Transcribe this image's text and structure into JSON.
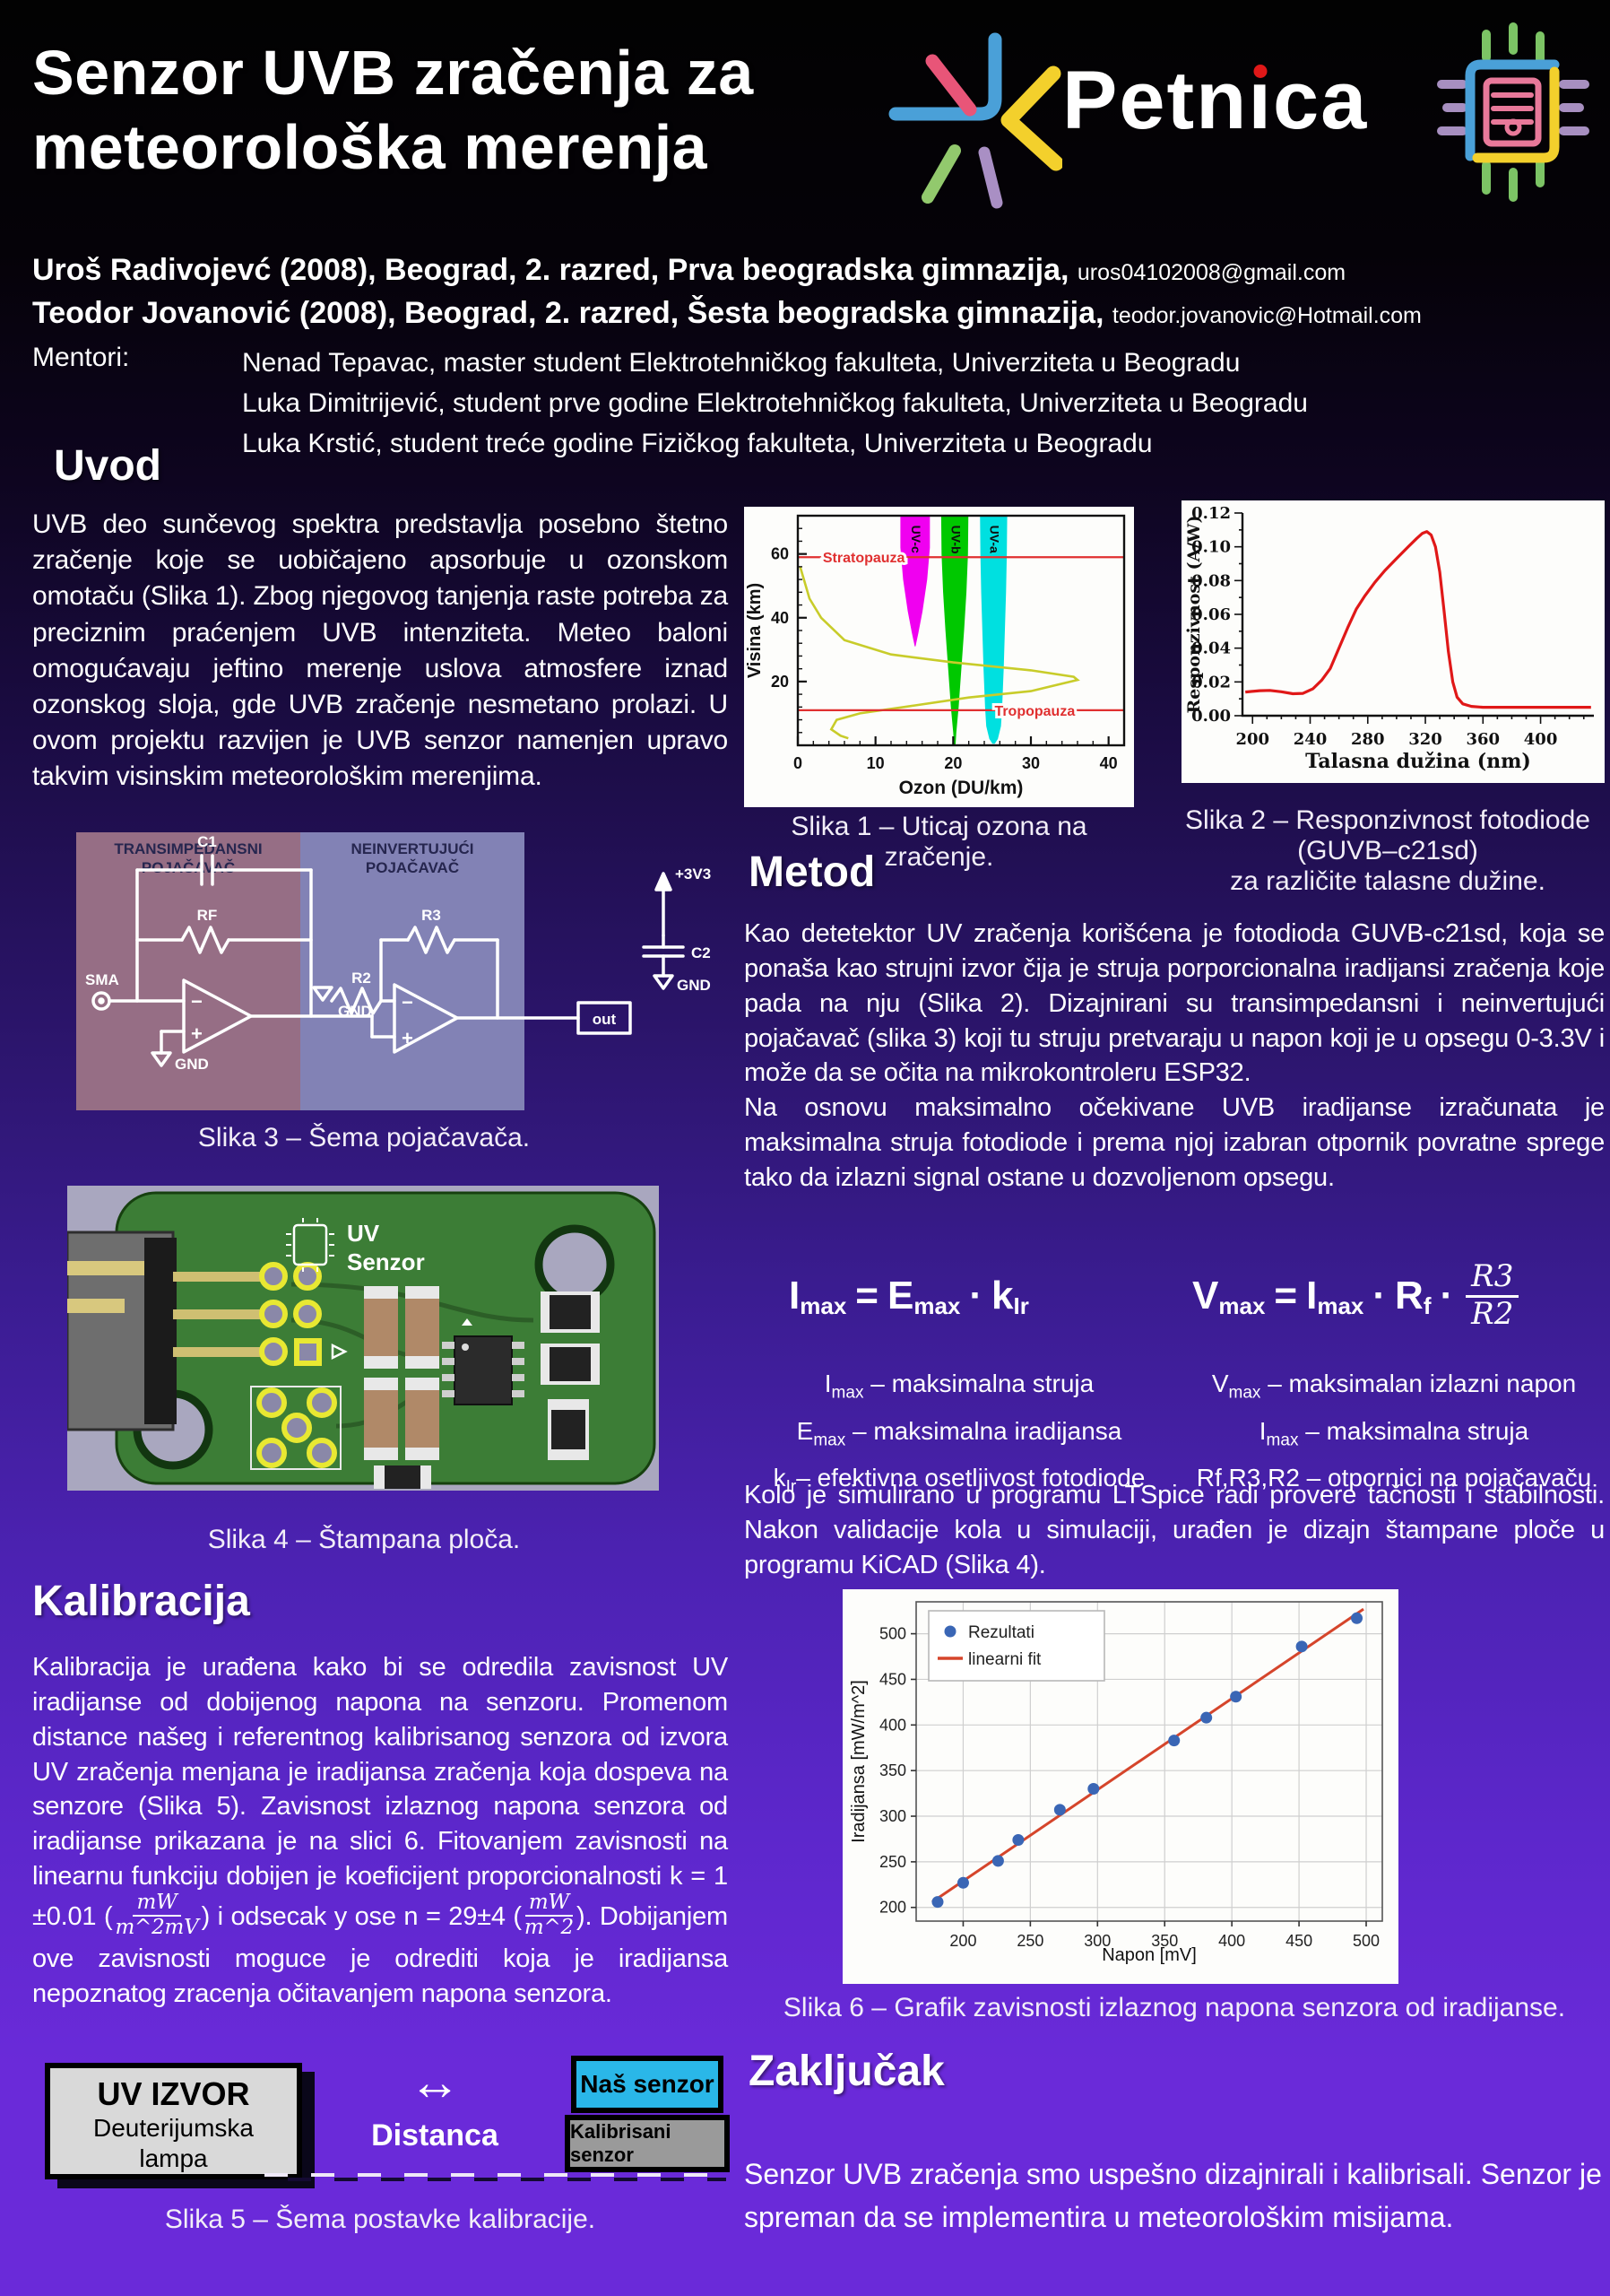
{
  "header": {
    "title_line1": "Senzor UVB zračenja za",
    "title_line2": "meteorološka merenja",
    "authors": [
      {
        "main": "Uroš Radivojevć (2008), Beograd, 2. razred, Prva beogradska gimnazija,",
        "email": "uros04102008@gmail.com"
      },
      {
        "main": "Teodor Jovanović (2008), Beograd, 2. razred, Šesta beogradska gimnazija,",
        "email": "teodor.jovanovic@Hotmail.com"
      }
    ],
    "mentors_label": "Mentori:",
    "mentors": [
      "Nenad Tepavac, master student Elektrotehničkog fakulteta, Univerziteta u Beogradu",
      "Luka Dimitrijević, student prve godine Elektrotehničkog fakulteta, Univerziteta u Beogradu",
      "Luka Krstić, student treće godine Fizičkog fakulteta, Univerziteta u Beogradu"
    ],
    "logo_p1": "Petn",
    "logo_p2": "ı",
    "logo_p3": "ca"
  },
  "uvod": {
    "heading": "Uvod",
    "body": "UVB deo sunčevog spektra predstavlja posebno štetno zračenje koje se uobičajeno apsorbuje u ozonskom omotaču (Slika 1). Zbog njegovog tanjenja raste potreba za preciznim praćenjem UVB intenziteta. Meteo baloni omogućavaju jeftino merenje uslova atmosfere iznad ozonskog sloja, gde UVB zračenje nesmetano prolazi. U ovom projektu razvijen je UVB senzor namenjen upravo takvim visinskim meteorološkim merenjima."
  },
  "metod": {
    "heading": "Metod",
    "p1": "Kao detetektor UV zračenja korišćena je fotodioda GUVB-c21sd, koja se ponaša kao strujni izvor čija je struja porporcionalna iradijansi zračenja koje pada na nju (Slika 2). Dizajnirani su transimpedansni i neinvertujući pojačavač (slika 3) koji tu struju pretvaraju u napon koji je u opsegu 0-3.3V i može da se očita na mikrokontroleru ESP32.",
    "p2": "Na osnovu maksimalno očekivane UVB iradijanse izračunata je maksimalna struja fotodiode i prema njoj izabran otpornik povratne sprege tako da izlazni signal ostane u dozvoljenom opsegu.",
    "p3": "Kolo je simulirano u programu LTSpice radi provere tačnosti i stabilnosti. Nakon validacije kola u simulaciji, urađen je dizajn štampane ploče u programu KiCAD (Slika 4)."
  },
  "kalibracija": {
    "heading": "Kalibracija",
    "t1": "Kalibracija je urađena kako bi se odredila zavisnost UV iradijanse od dobijenog napona na senzoru. Promenom distance našeg i referentnog kalibrisanog senzora od izvora UV zračenja menjana je iradijansa zračenja koja dospeva na senzore (Slika 5). Zavisnost izlaznog napona senzora od iradijanse prikazana je na slici 6. Fitovanjem zavisnosti na linearnu funkciju dobijen je koeficijent proporcionalnosti k = 1 ±0.01 (",
    "frac1_num": "mW",
    "frac1_den": "m^2mV",
    "t2": ") i odsecak y ose n = 29±4 (",
    "frac2_num": "mW",
    "frac2_den": "m^2",
    "t3": "). Dobijanjem ove zavisnosti moguce je odrediti koja je iradijansa nepoznatog zracenja očitavanjem napona senzora."
  },
  "zakljucak": {
    "heading": "Zaključak",
    "body": "Senzor UVB zračenja smo uspešno dizajnirali i kalibrisali. Senzor je spreman da se implementira u meteorološkim misijama."
  },
  "formulas": {
    "imax": {
      "b1": "I",
      "s1": "max",
      "eq": "=",
      "b2": "E",
      "s2": "max",
      "dot": "·",
      "b3": "k",
      "s3": "Ir"
    },
    "vmax": {
      "b1": "V",
      "s1": "max",
      "eq": "=",
      "b2": "I",
      "s2": "max",
      "d1": "·",
      "b3": "R",
      "s3": "f",
      "d2": "·",
      "num": "R3",
      "den": "R2"
    },
    "defs_left": [
      {
        "base": "I",
        "sub": "max",
        "rest": " – maksimalna struja"
      },
      {
        "base": "E",
        "sub": "max",
        "rest": " – maksimalna iradijansa"
      },
      {
        "base": "k",
        "sub": "Ir",
        "rest": "– efektivna osetljivost fotodiode"
      }
    ],
    "defs_right": [
      {
        "base": "V",
        "sub": "max",
        "rest": " – maksimalan izlazni napon"
      },
      {
        "base": "I",
        "sub": "max",
        "rest": " – maksimalna struja"
      },
      {
        "base": "Rf,R3,R2",
        "sub": "",
        "rest": " – otpornici na pojačavaču"
      }
    ]
  },
  "figures": {
    "fig1": {
      "caption": "Slika 1 – Uticaj ozona na zračenje."
    },
    "fig2": {
      "cap1": "Slika 2 – Responzivnost fotodiode",
      "cap2": "(GUVB–c21sd)",
      "cap3": "za različite talasne dužine."
    },
    "fig3": {
      "caption": "Slika 3 – Šema pojačavača.",
      "t1a": "TRANSIMPEDANSNI",
      "t1b": "POJAČAVAČ",
      "t2a": "NEINVERTUJUĆI",
      "t2b": "POJAČAVAČ",
      "c1": "C1",
      "rf": "RF",
      "sma": "SMA",
      "gnd": "GND",
      "r2": "R2",
      "r3": "R3",
      "out": "out",
      "v33": "+3V3",
      "c2": "C2",
      "minus": "−",
      "plus": "+"
    },
    "fig4": {
      "caption": "Slika 4 – Štampana ploča.",
      "silk1": "UV",
      "silk2": "Senzor"
    },
    "fig5": {
      "caption": "Slika 5 – Šema postavke kalibracije.",
      "box1_l1": "UV IZVOR",
      "box1_l2": "Deuterijumska",
      "box1_l3": "lampa",
      "arrow": "↔",
      "distance": "Distanca",
      "nas": "Naš senzor",
      "kalib": "Kalibrisani senzor"
    },
    "fig6": {
      "caption": "Slika 6 – Grafik zavisnosti izlaznog napona senzora od iradijanse."
    }
  },
  "chart_data": [
    {
      "figure": "Slika 1",
      "type": "area",
      "xlabel": "Ozon (DU/km)",
      "ylabel": "Visina (km)",
      "xlim": [
        0,
        42
      ],
      "ylim": [
        0,
        72
      ],
      "xticks": [
        0,
        10,
        20,
        30,
        40
      ],
      "yticks": [
        20,
        40,
        60
      ],
      "grid": false,
      "legend_position": "none",
      "hlines": [
        {
          "label": "Stratopauza",
          "y": 59,
          "color": "#e03030",
          "label_x": 8.5
        },
        {
          "label": "Tropopauza",
          "y": 11,
          "color": "#e03030",
          "label_x": 30.5
        }
      ],
      "bands": [
        {
          "label": "UV-c",
          "color": "#f000f0",
          "center": 15.1,
          "profile": [
            [
              72,
              1.9
            ],
            [
              62,
              1.9
            ],
            [
              52,
              1.55
            ],
            [
              42,
              0.95
            ],
            [
              35,
              0.4
            ],
            [
              31,
              0.05
            ]
          ]
        },
        {
          "label": "UV-b",
          "color": "#00c800",
          "center": 20.2,
          "profile": [
            [
              72,
              1.75
            ],
            [
              60,
              1.7
            ],
            [
              48,
              1.5
            ],
            [
              36,
              1.2
            ],
            [
              24,
              0.85
            ],
            [
              12,
              0.5
            ],
            [
              4,
              0.2
            ],
            [
              0,
              0.1
            ]
          ]
        },
        {
          "label": "UV-a",
          "color": "#00e0e0",
          "center": 25.2,
          "profile": [
            [
              72,
              1.75
            ],
            [
              60,
              1.7
            ],
            [
              48,
              1.6
            ],
            [
              36,
              1.45
            ],
            [
              24,
              1.3
            ],
            [
              12,
              1.1
            ],
            [
              6,
              0.95
            ],
            [
              2,
              0.55
            ],
            [
              0.5,
              0.15
            ]
          ]
        }
      ],
      "ozone_profile": {
        "color": "#c8cc2a",
        "points": [
          [
            0.3,
            56
          ],
          [
            1.5,
            46
          ],
          [
            3,
            40
          ],
          [
            6,
            33
          ],
          [
            12,
            28.5
          ],
          [
            20,
            26
          ],
          [
            30,
            23.5
          ],
          [
            35.5,
            21.5
          ],
          [
            36,
            20.5
          ],
          [
            30,
            17
          ],
          [
            22,
            15
          ],
          [
            15,
            12.5
          ],
          [
            8,
            10
          ],
          [
            5,
            8
          ],
          [
            4.3,
            5
          ],
          [
            5.5,
            3
          ],
          [
            6.5,
            2.2
          ]
        ]
      }
    },
    {
      "figure": "Slika 2",
      "type": "line",
      "xlabel": "Talasna dužina (nm)",
      "ylabel": "Responzivnost (A/W)",
      "xlim": [
        193,
        437
      ],
      "ylim": [
        0,
        0.12
      ],
      "xticks": [
        200,
        240,
        280,
        320,
        360,
        400
      ],
      "yticks": [
        0,
        0.02,
        0.04,
        0.06,
        0.08,
        0.1,
        0.12
      ],
      "ytick_labels": [
        "0.00",
        "0.02",
        "0.04",
        "0.06",
        "0.08",
        "0.10",
        "0.12"
      ],
      "grid": false,
      "line_color": "#e01818",
      "points": [
        [
          195,
          0.014
        ],
        [
          205,
          0.0148
        ],
        [
          212,
          0.015
        ],
        [
          220,
          0.0142
        ],
        [
          228,
          0.013
        ],
        [
          235,
          0.0132
        ],
        [
          242,
          0.016
        ],
        [
          248,
          0.021
        ],
        [
          254,
          0.028
        ],
        [
          260,
          0.04
        ],
        [
          266,
          0.052
        ],
        [
          272,
          0.063
        ],
        [
          278,
          0.071
        ],
        [
          285,
          0.079
        ],
        [
          292,
          0.086
        ],
        [
          300,
          0.093
        ],
        [
          308,
          0.1
        ],
        [
          314,
          0.105
        ],
        [
          318,
          0.108
        ],
        [
          321,
          0.109
        ],
        [
          324,
          0.107
        ],
        [
          327,
          0.1
        ],
        [
          330,
          0.085
        ],
        [
          333,
          0.062
        ],
        [
          336,
          0.038
        ],
        [
          339,
          0.02
        ],
        [
          342,
          0.011
        ],
        [
          346,
          0.007
        ],
        [
          352,
          0.0055
        ],
        [
          360,
          0.005
        ],
        [
          380,
          0.005
        ],
        [
          400,
          0.005
        ],
        [
          420,
          0.005
        ],
        [
          435,
          0.005
        ]
      ]
    },
    {
      "figure": "Slika 6",
      "type": "scatter",
      "xlabel": "Napon [mV]",
      "ylabel": "Iradijansa [mW/m^2]",
      "xlim": [
        165,
        512
      ],
      "ylim": [
        185,
        535
      ],
      "xticks": [
        200,
        250,
        300,
        350,
        400,
        450,
        500
      ],
      "yticks": [
        200,
        250,
        300,
        350,
        400,
        450,
        500
      ],
      "grid": true,
      "legend_position": "upper-left",
      "legend": [
        {
          "label": "Rezultati",
          "type": "dot",
          "color": "#3a66b5"
        },
        {
          "label": "linearni fit",
          "type": "line",
          "color": "#d5452b"
        }
      ],
      "points": [
        [
          181,
          206
        ],
        [
          200,
          227
        ],
        [
          226,
          251
        ],
        [
          241,
          274
        ],
        [
          272,
          307
        ],
        [
          297,
          330
        ],
        [
          357,
          383
        ],
        [
          381,
          408
        ],
        [
          403,
          431
        ],
        [
          452,
          486
        ],
        [
          493,
          517
        ]
      ],
      "fit": {
        "slope": 1,
        "intercept": 29,
        "x_range": [
          177,
          498
        ]
      }
    }
  ]
}
